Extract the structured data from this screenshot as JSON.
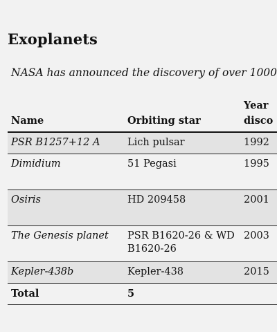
{
  "heading": "Exoplanets",
  "intro": "NASA has announced the discovery of over 1000",
  "table": {
    "columns": [
      "Name",
      "Orbiting star",
      "Year disco"
    ],
    "column_year_line1": "Year",
    "column_year_line2": "disco",
    "rows": [
      {
        "name": "PSR B1257+12 A",
        "star": "Lich pulsar",
        "year": "1992"
      },
      {
        "name": "Dimidium",
        "star": "51 Pegasi",
        "year": "1995"
      },
      {
        "name": "Osiris",
        "star": "HD 209458",
        "year": "2001"
      },
      {
        "name": "The Genesis planet",
        "star": "PSR B1620-26 & WD B1620-26",
        "year": "2003"
      },
      {
        "name": "Kepler-438b",
        "star": "Kepler-438",
        "year": "2015"
      }
    ],
    "total": {
      "label": "Total",
      "value": "5"
    }
  }
}
